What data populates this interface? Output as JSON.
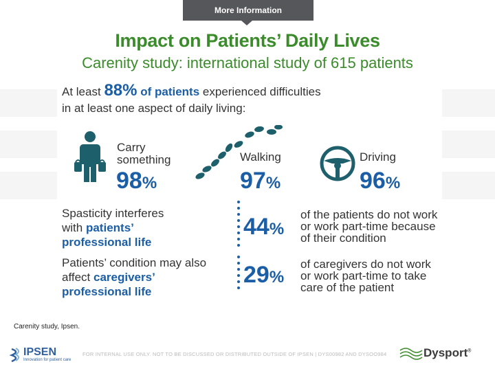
{
  "tab": {
    "label": "More Information"
  },
  "header": {
    "title": "Impact on Patients’ Daily Lives",
    "subtitle": "Carenity study: international study of 615 patients"
  },
  "intro": {
    "prefix": "At least",
    "highlight_value": "88%",
    "highlight_text": "of patients",
    "line1_rest": "experienced difficulties",
    "line2": "in at least one aspect of daily living:"
  },
  "activities": [
    {
      "label_line1": "Carry",
      "label_line2": "something",
      "value": "98",
      "unit": "%",
      "icon": "person-carrying-bags-icon"
    },
    {
      "label_line1": "Walking",
      "label_line2": "",
      "value": "97",
      "unit": "%",
      "icon": "footprints-icon"
    },
    {
      "label_line1": "Driving",
      "label_line2": "",
      "value": "96",
      "unit": "%",
      "icon": "steering-wheel-icon"
    }
  ],
  "professional": {
    "left_line1": "Spasticity interferes",
    "left_line2_prefix": "with",
    "left_line2_bold": "patients’",
    "left_line3_bold": "professional life",
    "value": "44",
    "unit": "%",
    "desc_line1": "of the patients do not work",
    "desc_line2": "or work part-time because",
    "desc_line3": "of their condition"
  },
  "caregivers": {
    "left_line1": "Patients’ condition may also",
    "left_line2_prefix": "affect",
    "left_line2_bold": "caregivers’",
    "left_line3_bold": "professional life",
    "value": "29",
    "unit": "%",
    "desc_line1": "of caregivers do not work",
    "desc_line2": "or work part-time to take",
    "desc_line3": "care of the patient"
  },
  "source": "Carenity study, Ipsen.",
  "footer": {
    "company": "IPSEN",
    "company_tagline": "Innovation for patient care",
    "disclaimer": "FOR INTERNAL USE ONLY. NOT TO BE DISCUSSED OR DISTRIBUTED OUTSIDE OF IPSEN | DYS00982 AND DYSOO984",
    "brand": "Dysport",
    "brand_mark": "®"
  },
  "colors": {
    "green": "#3a8b2a",
    "blue": "#1b5ea5",
    "teal": "#1d5f6b",
    "tab": "#55575b"
  }
}
